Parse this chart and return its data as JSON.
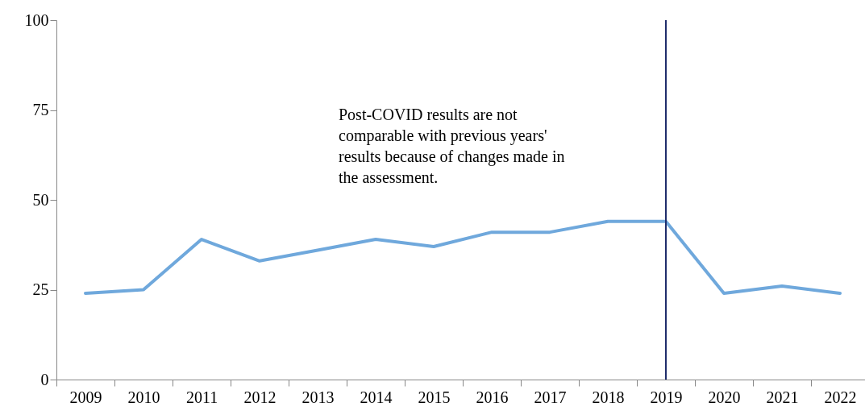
{
  "chart_data": {
    "type": "line",
    "categories": [
      "2009",
      "2010",
      "2011",
      "2012",
      "2013",
      "2014",
      "2015",
      "2016",
      "2017",
      "2018",
      "2019",
      "2020",
      "2021",
      "2022"
    ],
    "series": [
      {
        "color": "#6fa8dc",
        "values": [
          24,
          25,
          39,
          33,
          36,
          39,
          37,
          41,
          41,
          44,
          44,
          24,
          26,
          24
        ]
      }
    ],
    "ylim": [
      0,
      100
    ],
    "yticks": [
      0,
      25,
      50,
      75,
      100
    ],
    "ref_lines": [
      {
        "axis": "x",
        "value": "2019",
        "color": "#1f2d6b"
      }
    ],
    "annotations": [
      "Post-COVID results are not comparable with previous years' results because of changes made in the assessment."
    ]
  }
}
